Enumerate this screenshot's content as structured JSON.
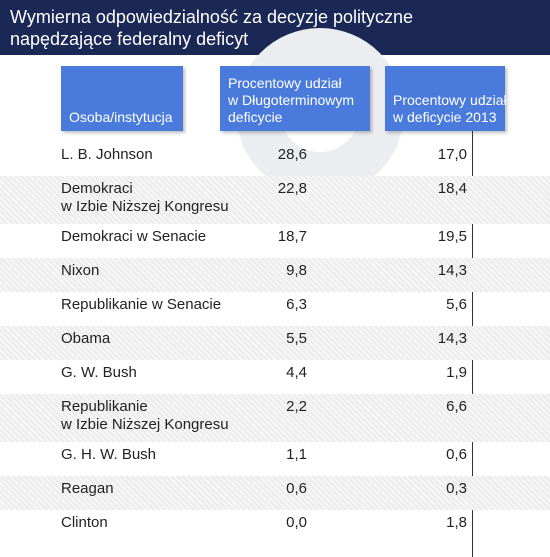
{
  "title": {
    "line1": "Wymierna odpowiedzialność za decyzje polityczne",
    "line2": "napędzające federalny deficyt"
  },
  "headers": {
    "col1": [
      "Osoba/instytucja"
    ],
    "col2": [
      "Procentowy udział",
      "w Długoterminowym",
      "deficycie"
    ],
    "col3": [
      "Procentowy udział",
      "w deficycie 2013"
    ]
  },
  "rows": [
    {
      "name": [
        "L. B. Johnson"
      ],
      "long_term": "28,6",
      "deficit_2013": "17,0"
    },
    {
      "name": [
        "Demokraci",
        "w Izbie Niższej Kongresu"
      ],
      "long_term": "22,8",
      "deficit_2013": "18,4"
    },
    {
      "name": [
        "Demokraci w Senacie"
      ],
      "long_term": "18,7",
      "deficit_2013": "19,5"
    },
    {
      "name": [
        "Nixon"
      ],
      "long_term": "9,8",
      "deficit_2013": "14,3"
    },
    {
      "name": [
        "Republikanie w Senacie"
      ],
      "long_term": "6,3",
      "deficit_2013": "5,6"
    },
    {
      "name": [
        "Obama"
      ],
      "long_term": "5,5",
      "deficit_2013": "14,3"
    },
    {
      "name": [
        "G. W. Bush"
      ],
      "long_term": "4,4",
      "deficit_2013": "1,9"
    },
    {
      "name": [
        "Republikanie",
        "w Izbie Niższej Kongresu"
      ],
      "long_term": "2,2",
      "deficit_2013": "6,6"
    },
    {
      "name": [
        "G. H. W. Bush"
      ],
      "long_term": "1,1",
      "deficit_2013": "0,6"
    },
    {
      "name": [
        "Reagan"
      ],
      "long_term": "0,6",
      "deficit_2013": "0,3"
    },
    {
      "name": [
        "Clinton"
      ],
      "long_term": "0,0",
      "deficit_2013": "1,8"
    }
  ],
  "colors": {
    "title_background": "#1b2755",
    "header_background": "#4a7bdc",
    "row_shade": "#ececec"
  }
}
